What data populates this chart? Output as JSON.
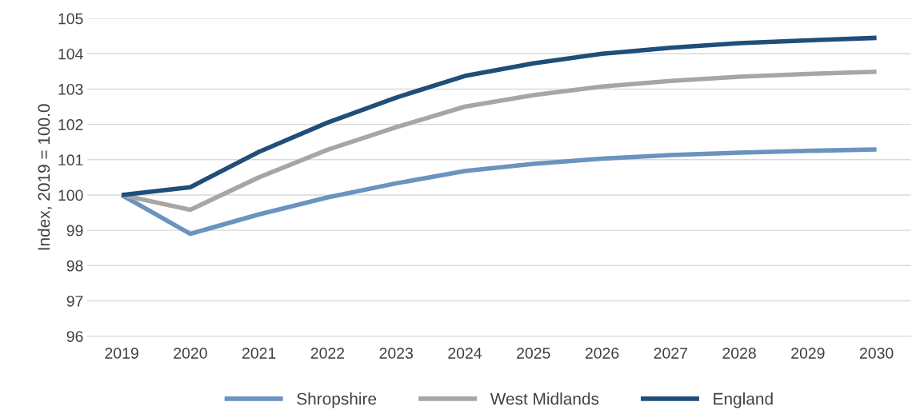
{
  "chart_data": {
    "type": "line",
    "ylabel": "Index, 2019 = 100.0",
    "categories": [
      "2019",
      "2020",
      "2021",
      "2022",
      "2023",
      "2024",
      "2025",
      "2026",
      "2027",
      "2028",
      "2029",
      "2030"
    ],
    "series": [
      {
        "name": "Shropshire",
        "color": "#6a93bf",
        "values": [
          100,
          98.9,
          99.45,
          99.93,
          100.33,
          100.68,
          100.88,
          101.03,
          101.13,
          101.2,
          101.25,
          101.29
        ]
      },
      {
        "name": "West Midlands",
        "color": "#a6a6a6",
        "values": [
          100,
          99.58,
          100.5,
          101.28,
          101.92,
          102.5,
          102.83,
          103.07,
          103.23,
          103.35,
          103.43,
          103.49
        ]
      },
      {
        "name": "England",
        "color": "#1f4e79",
        "values": [
          100,
          100.22,
          101.22,
          102.05,
          102.76,
          103.37,
          103.73,
          104.0,
          104.17,
          104.3,
          104.38,
          104.45
        ]
      }
    ],
    "ylim": [
      96,
      105
    ],
    "yticks": [
      96,
      97,
      98,
      99,
      100,
      101,
      102,
      103,
      104,
      105
    ],
    "grid": "y",
    "legend": "bottom",
    "marker": "none",
    "line_style": "solid"
  }
}
